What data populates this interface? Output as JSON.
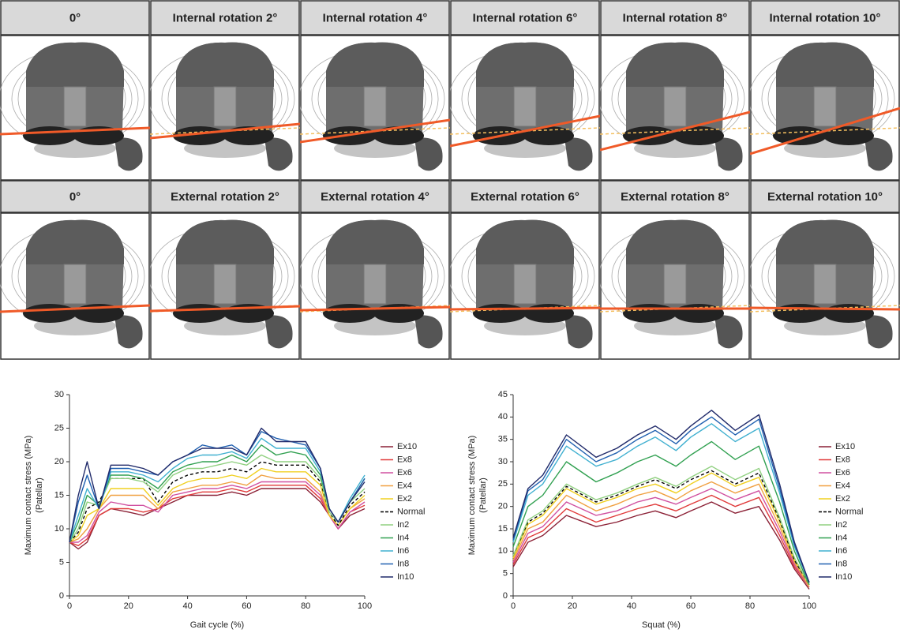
{
  "grid": {
    "rows": [
      [
        "0°",
        "Internal rotation 2°",
        "Internal rotation 4°",
        "Internal rotation 6°",
        "Internal rotation 8°",
        "Internal rotation 10°"
      ],
      [
        "0°",
        "External rotation 2°",
        "External rotation 4°",
        "External rotation 6°",
        "External rotation 8°",
        "External rotation 10°"
      ]
    ]
  },
  "chart_data": [
    {
      "type": "line",
      "x_label": "Gait cycle (%)",
      "y_label": [
        "Maximum contact stress (MPa)",
        "(Patellar)"
      ],
      "xlim": [
        0,
        100
      ],
      "xticks": [
        0,
        20,
        40,
        60,
        80,
        100
      ],
      "ylim": [
        0,
        30
      ],
      "yticks": [
        0,
        5,
        10,
        15,
        20,
        25,
        30
      ],
      "x": [
        0,
        3,
        6,
        10,
        14,
        20,
        25,
        30,
        35,
        40,
        45,
        50,
        55,
        60,
        65,
        70,
        75,
        80,
        85,
        88,
        91,
        95,
        100
      ],
      "series": [
        {
          "name": "Ex10",
          "color": "#8b2035",
          "values": [
            8,
            7,
            8,
            12,
            13,
            12.5,
            12,
            13,
            14,
            15,
            15,
            15,
            15.5,
            15,
            16,
            16,
            16,
            16,
            14,
            12,
            10,
            12,
            13
          ]
        },
        {
          "name": "Ex8",
          "color": "#e03a3a",
          "values": [
            8,
            7.5,
            8.5,
            12,
            13,
            13,
            12.5,
            13,
            14.5,
            15,
            15.5,
            15.5,
            16,
            15.5,
            16.5,
            16.5,
            16.5,
            16.5,
            14.5,
            12,
            10,
            12.5,
            13.5
          ]
        },
        {
          "name": "Ex6",
          "color": "#d050a0",
          "values": [
            8,
            8,
            9,
            12.5,
            14,
            13.5,
            13.5,
            12.5,
            15,
            15.5,
            16,
            16,
            16.5,
            16,
            17,
            17,
            17,
            17,
            15,
            12,
            10,
            12.5,
            14
          ]
        },
        {
          "name": "Ex4",
          "color": "#f0a040",
          "values": [
            8,
            8.5,
            10,
            13,
            15,
            15,
            15,
            13,
            15.5,
            16,
            16.5,
            16.5,
            17,
            16.5,
            18,
            17.5,
            17.5,
            17.5,
            15.5,
            12,
            10.5,
            13,
            14.5
          ]
        },
        {
          "name": "Ex2",
          "color": "#f0d020",
          "values": [
            8,
            9,
            12,
            13,
            16,
            16,
            16,
            13.5,
            16,
            17,
            17.5,
            17.5,
            18,
            17.5,
            19,
            18.5,
            18.5,
            18.5,
            16.5,
            12,
            10.5,
            13,
            15
          ]
        },
        {
          "name": "Normal",
          "color": "#000000",
          "dash": true,
          "values": [
            8,
            9.5,
            13,
            14,
            17.5,
            17.5,
            17.5,
            14,
            17,
            18,
            18.5,
            18.5,
            19,
            18.5,
            20,
            19.5,
            19.5,
            19.5,
            17,
            12.5,
            10.5,
            13.5,
            15.5
          ]
        },
        {
          "name": "In2",
          "color": "#90d080",
          "values": [
            8,
            10,
            14,
            13.5,
            17.5,
            17.5,
            17,
            15.5,
            18,
            19,
            19,
            19.5,
            20,
            19.5,
            21,
            20,
            20,
            20,
            17.5,
            12.5,
            11,
            14,
            16
          ]
        },
        {
          "name": "In4",
          "color": "#30a050",
          "values": [
            8,
            11,
            15,
            13.5,
            18,
            18,
            17.5,
            16,
            18.5,
            19.5,
            20,
            20,
            21,
            20,
            22.5,
            21,
            21.5,
            21,
            18,
            13,
            11,
            14,
            17.5
          ]
        },
        {
          "name": "In6",
          "color": "#40b0d0",
          "values": [
            8,
            12,
            16,
            13,
            18.5,
            18.5,
            18,
            17,
            19,
            20.5,
            21,
            21,
            21.5,
            20.5,
            23.5,
            22,
            22,
            22,
            18.5,
            13,
            11,
            14.5,
            18
          ]
        },
        {
          "name": "In8",
          "color": "#2060b0",
          "values": [
            8,
            14,
            18,
            13,
            19,
            19,
            18.5,
            18,
            20,
            21,
            22.5,
            22,
            22.5,
            21,
            24.5,
            23.5,
            23,
            22.5,
            19,
            13,
            11,
            14,
            17.5
          ]
        },
        {
          "name": "In10",
          "color": "#202a6a",
          "values": [
            8,
            15,
            20,
            13,
            19.5,
            19.5,
            19,
            18,
            20,
            21,
            22,
            22,
            22,
            21,
            25,
            23,
            23,
            23,
            19,
            13,
            11,
            14,
            17
          ]
        }
      ]
    },
    {
      "type": "line",
      "x_label": "Squat (%)",
      "y_label": [
        "Maximum contact stress (MPa)",
        "(Patellar)"
      ],
      "xlim": [
        0,
        100
      ],
      "xticks": [
        0,
        20,
        40,
        60,
        80,
        100
      ],
      "ylim": [
        0,
        45
      ],
      "yticks": [
        0,
        5,
        10,
        15,
        20,
        25,
        30,
        35,
        40,
        45
      ],
      "x": [
        0,
        5,
        10,
        18,
        28,
        35,
        42,
        48,
        55,
        60,
        67,
        75,
        83,
        90,
        95,
        100
      ],
      "series": [
        {
          "name": "Ex10",
          "color": "#8b2035",
          "values": [
            6.5,
            12,
            13.5,
            18,
            15.5,
            16.5,
            18,
            19,
            17.5,
            19,
            21,
            18.5,
            20,
            12.5,
            6,
            1.5
          ]
        },
        {
          "name": "Ex8",
          "color": "#e03a3a",
          "values": [
            7,
            13,
            14.5,
            19.5,
            16.5,
            18,
            19.5,
            20.5,
            19,
            20.5,
            22.5,
            20,
            22,
            13.5,
            6.5,
            2
          ]
        },
        {
          "name": "Ex6",
          "color": "#d050a0",
          "values": [
            7.5,
            14,
            15.5,
            21,
            18,
            19,
            21,
            22,
            20.5,
            22,
            24,
            21.5,
            23.5,
            14.5,
            7,
            2
          ]
        },
        {
          "name": "Ex4",
          "color": "#f0a040",
          "values": [
            8,
            15,
            16.5,
            22.5,
            19,
            20.5,
            22.5,
            23.5,
            21.5,
            23.5,
            25.5,
            23,
            25,
            15.5,
            7.5,
            2
          ]
        },
        {
          "name": "Ex2",
          "color": "#f0d020",
          "values": [
            8.5,
            16,
            18,
            24,
            20.5,
            22,
            24,
            25,
            23,
            25,
            27.5,
            24.5,
            26.5,
            16.5,
            8,
            2.5
          ]
        },
        {
          "name": "Normal",
          "color": "#000000",
          "dash": true,
          "values": [
            9,
            16.5,
            18.5,
            24.5,
            21,
            22.5,
            24.5,
            26,
            24,
            26,
            28,
            25,
            27.5,
            17,
            8,
            2.5
          ]
        },
        {
          "name": "In2",
          "color": "#90d080",
          "values": [
            9,
            17,
            19,
            25,
            21.5,
            23,
            25,
            26.5,
            24.5,
            26.5,
            29,
            26,
            28.5,
            17.5,
            8.5,
            2.5
          ]
        },
        {
          "name": "In4",
          "color": "#30a050",
          "values": [
            11,
            20,
            22.5,
            30,
            25.5,
            27.5,
            30,
            31.5,
            29,
            31.5,
            34.5,
            30.5,
            33.5,
            21,
            10,
            2.5
          ]
        },
        {
          "name": "In6",
          "color": "#40b0d0",
          "values": [
            12,
            22.5,
            25,
            33.5,
            29,
            30.5,
            33.5,
            35.5,
            32.5,
            35.5,
            38.5,
            34.5,
            37.5,
            23,
            11,
            3
          ]
        },
        {
          "name": "In8",
          "color": "#2060b0",
          "values": [
            12.5,
            23.5,
            26,
            35,
            30,
            32,
            35,
            37,
            34,
            37,
            40,
            36,
            39.5,
            24,
            11.5,
            3
          ]
        },
        {
          "name": "In10",
          "color": "#202a6a",
          "values": [
            13,
            24,
            27,
            36,
            31,
            33,
            36,
            38,
            35,
            38,
            41.5,
            37,
            40.5,
            25,
            12,
            3
          ]
        }
      ]
    }
  ]
}
